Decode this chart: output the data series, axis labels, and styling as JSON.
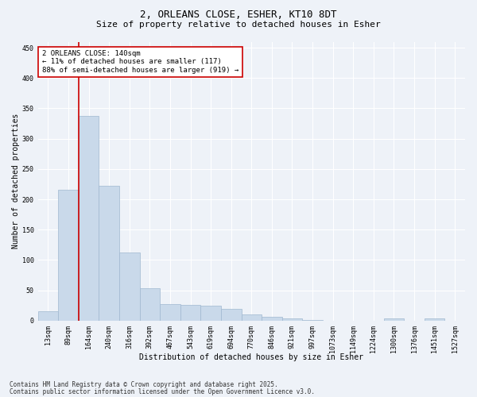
{
  "title_line1": "2, ORLEANS CLOSE, ESHER, KT10 8DT",
  "title_line2": "Size of property relative to detached houses in Esher",
  "xlabel": "Distribution of detached houses by size in Esher",
  "ylabel": "Number of detached properties",
  "categories": [
    "13sqm",
    "89sqm",
    "164sqm",
    "240sqm",
    "316sqm",
    "392sqm",
    "467sqm",
    "543sqm",
    "619sqm",
    "694sqm",
    "770sqm",
    "846sqm",
    "921sqm",
    "997sqm",
    "1073sqm",
    "1149sqm",
    "1224sqm",
    "1300sqm",
    "1376sqm",
    "1451sqm",
    "1527sqm"
  ],
  "values": [
    15,
    216,
    338,
    222,
    112,
    54,
    27,
    26,
    25,
    19,
    10,
    6,
    4,
    1,
    0,
    0,
    0,
    3,
    0,
    3,
    0
  ],
  "bar_color": "#c9d9ea",
  "bar_edge_color": "#a0b8d0",
  "vline_color": "#cc0000",
  "vline_x_index": 1.5,
  "annotation_text": "2 ORLEANS CLOSE: 140sqm\n← 11% of detached houses are smaller (117)\n88% of semi-detached houses are larger (919) →",
  "annotation_box_color": "#ffffff",
  "annotation_box_edge_color": "#cc0000",
  "ylim": [
    0,
    460
  ],
  "yticks": [
    0,
    50,
    100,
    150,
    200,
    250,
    300,
    350,
    400,
    450
  ],
  "bg_color": "#eef2f8",
  "grid_color": "#ffffff",
  "footer_line1": "Contains HM Land Registry data © Crown copyright and database right 2025.",
  "footer_line2": "Contains public sector information licensed under the Open Government Licence v3.0.",
  "title_fontsize": 9,
  "subtitle_fontsize": 8,
  "axis_label_fontsize": 7,
  "tick_fontsize": 6,
  "annotation_fontsize": 6.5,
  "footer_fontsize": 5.5,
  "ylabel_fontsize": 7
}
